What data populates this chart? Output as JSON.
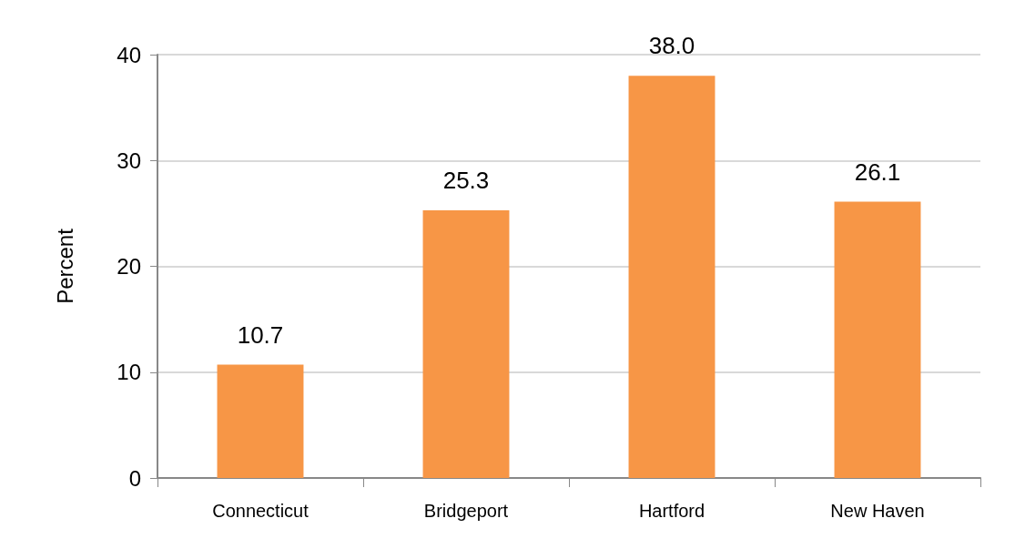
{
  "chart_data": {
    "type": "bar",
    "ylabel": "Percent",
    "categories": [
      "Connecticut",
      "Bridgeport",
      "Hartford",
      "New Haven"
    ],
    "values": [
      10.7,
      25.3,
      38.0,
      26.1
    ],
    "value_labels": [
      "10.7",
      "25.3",
      "38.0",
      "26.1"
    ],
    "color": "#f79646",
    "ylim": [
      0,
      40
    ],
    "yticks": [
      0,
      10,
      20,
      30,
      40
    ],
    "grid": "y"
  }
}
